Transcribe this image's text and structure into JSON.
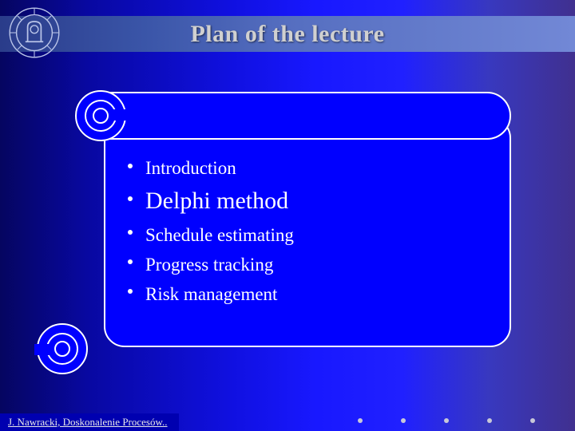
{
  "title": "Plan of the lecture",
  "footer": "J. Nawracki, Doskonalenie Procesów..",
  "items": [
    {
      "text": "Introduction",
      "size": "small"
    },
    {
      "text": "Delphi method",
      "size": "large"
    },
    {
      "text": "Schedule estimating",
      "size": "small"
    },
    {
      "text": "Progress tracking",
      "size": "small"
    },
    {
      "text": "Risk management",
      "size": "small"
    }
  ],
  "style": {
    "slide_width": 720,
    "slide_height": 540,
    "background_gradient": [
      "#050560",
      "#0808a0",
      "#1010e0",
      "#1818ff",
      "#2020ff",
      "#3838bf",
      "#40308f"
    ],
    "title_color": "#d0d0d0",
    "title_fontsize": 30,
    "header_band_gradient": [
      "#2a3c8a",
      "#3a55a8",
      "#556ec0",
      "#7288d6"
    ],
    "scroll_fill": "#0000ff",
    "scroll_border": "#ffffff",
    "scroll_border_width": 2,
    "scroll_corner_radius": 26,
    "bullet_color": "#ffffff",
    "text_color": "#ffffff",
    "small_fontsize": 23,
    "large_fontsize": 30,
    "footer_bg": "#0000b0",
    "footer_color": "#e8e8e8",
    "footer_fontsize": 13,
    "deco_dot_color": "#c8c8d8",
    "deco_dot_count": 5,
    "logo_stroke": "#b9c4e8"
  }
}
